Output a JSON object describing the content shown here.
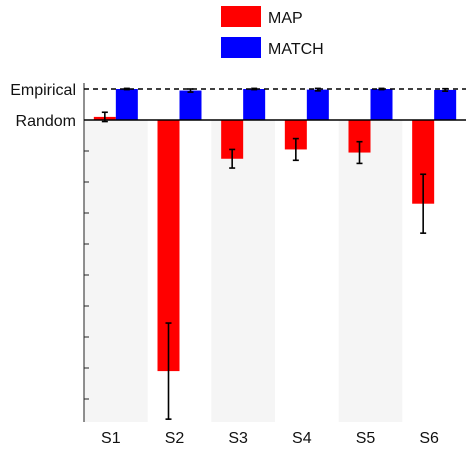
{
  "chart_data": {
    "type": "bar",
    "categories": [
      "S1",
      "S2",
      "S3",
      "S4",
      "S5",
      "S6"
    ],
    "y_reference_labels": {
      "empirical": "Empirical",
      "random": "Random"
    },
    "ylim": [
      -9.5,
      1.1
    ],
    "series": [
      {
        "name": "MAP",
        "color": "#ff0000",
        "values": [
          0.1,
          -8.1,
          -1.25,
          -0.95,
          -1.05,
          -2.7
        ],
        "errors": [
          0.15,
          1.55,
          0.3,
          0.35,
          0.35,
          0.95
        ]
      },
      {
        "name": "MATCH",
        "color": "#0000ff",
        "values": [
          1.0,
          0.95,
          1.0,
          0.98,
          1.0,
          0.97
        ],
        "errors": [
          0.02,
          0.05,
          0.02,
          0.04,
          0.02,
          0.04
        ]
      }
    ],
    "references": [
      {
        "label": "Empirical",
        "y": 1.0,
        "style": "dashed"
      },
      {
        "label": "Random",
        "y": 0.0,
        "style": "solid"
      }
    ],
    "legend_position": "top",
    "grid": false
  }
}
